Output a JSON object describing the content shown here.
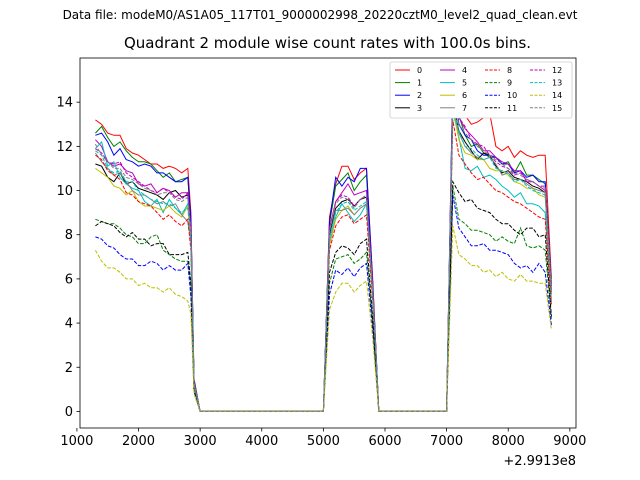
{
  "suptitle": "Data file: modeM0/AS1A05_117T01_9000002998_20220cztM0_level2_quad_clean.evt",
  "chart_data": {
    "type": "line",
    "title": "Quadrant 2 module wise count rates with 100.0s bins.",
    "xlabel": "",
    "ylabel": "",
    "x_offset_text": "+2.9913e8",
    "xlim": [
      1050,
      9100
    ],
    "ylim": [
      -0.75,
      16
    ],
    "xticks": [
      1000,
      2000,
      3000,
      4000,
      5000,
      6000,
      7000,
      8000,
      9000
    ],
    "yticks": [
      0,
      2,
      4,
      6,
      8,
      10,
      12,
      14
    ],
    "legend_position": "top-right",
    "grid": false,
    "x": [
      1300,
      1400,
      1500,
      1600,
      1700,
      1800,
      1900,
      2000,
      2100,
      2200,
      2300,
      2400,
      2500,
      2600,
      2700,
      2800,
      2850,
      2900,
      3000,
      3500,
      4000,
      4500,
      5000,
      5100,
      5200,
      5300,
      5400,
      5500,
      5600,
      5700,
      5800,
      5900,
      6000,
      6500,
      7000,
      7100,
      7200,
      7300,
      7400,
      7500,
      7600,
      7700,
      7800,
      7900,
      8000,
      8100,
      8200,
      8300,
      8400,
      8500,
      8600,
      8700
    ],
    "series": [
      {
        "name": "0",
        "color": "#ff0000",
        "dash": "solid",
        "values": [
          13.2,
          13.0,
          12.6,
          12.5,
          12.5,
          11.9,
          11.7,
          11.6,
          11.4,
          11.2,
          11.2,
          11.0,
          11.1,
          11.0,
          10.8,
          11.0,
          9.0,
          1.5,
          0,
          0,
          0,
          0,
          0,
          8.8,
          10.3,
          11.1,
          11.1,
          10.5,
          10.8,
          11.0,
          6.0,
          0,
          0,
          0,
          0,
          15.0,
          13.8,
          13.4,
          13.0,
          13.1,
          13.3,
          13.5,
          12.0,
          11.8,
          12.0,
          11.5,
          11.8,
          11.6,
          11.5,
          11.6,
          11.6,
          6.0
        ]
      },
      {
        "name": "1",
        "color": "#008000",
        "dash": "solid",
        "values": [
          12.6,
          12.9,
          12.4,
          12.0,
          12.2,
          11.8,
          11.5,
          11.3,
          11.3,
          11.2,
          10.9,
          10.6,
          10.8,
          10.4,
          10.5,
          10.6,
          8.7,
          1.4,
          0,
          0,
          0,
          0,
          0,
          8.5,
          10.2,
          10.5,
          10.8,
          10.0,
          10.4,
          10.7,
          5.8,
          0,
          0,
          0,
          0,
          14.6,
          13.4,
          12.5,
          12.0,
          12.1,
          11.7,
          11.5,
          11.5,
          11.2,
          11.3,
          10.8,
          11.3,
          10.7,
          10.7,
          10.5,
          10.3,
          5.8
        ]
      },
      {
        "name": "2",
        "color": "#0000ff",
        "dash": "solid",
        "values": [
          12.5,
          12.6,
          12.2,
          11.6,
          11.9,
          11.4,
          11.3,
          11.1,
          11.2,
          11.1,
          10.8,
          10.8,
          10.6,
          10.4,
          10.4,
          10.6,
          8.7,
          1.4,
          0,
          0,
          0,
          0,
          0,
          8.6,
          10.6,
          10.2,
          10.6,
          10.4,
          11.0,
          11.0,
          5.8,
          0,
          0,
          0,
          0,
          15.2,
          13.0,
          12.5,
          12.3,
          11.8,
          11.6,
          11.6,
          11.5,
          11.2,
          11.2,
          10.8,
          10.9,
          10.6,
          10.7,
          10.4,
          10.4,
          5.7
        ]
      },
      {
        "name": "3",
        "color": "#000000",
        "dash": "solid",
        "values": [
          11.2,
          11.1,
          10.6,
          10.4,
          10.8,
          10.3,
          10.4,
          10.1,
          10.0,
          9.9,
          9.8,
          9.6,
          9.9,
          10.0,
          9.7,
          9.8,
          8.0,
          1.3,
          0,
          0,
          0,
          0,
          0,
          8.0,
          9.2,
          9.5,
          9.6,
          9.3,
          9.6,
          9.7,
          5.4,
          0,
          0,
          0,
          0,
          14.1,
          12.7,
          12.2,
          11.8,
          11.4,
          11.7,
          11.6,
          11.1,
          10.8,
          10.9,
          10.6,
          10.5,
          10.4,
          10.2,
          10.1,
          9.9,
          5.4
        ]
      },
      {
        "name": "4",
        "color": "#bf00bf",
        "dash": "solid",
        "values": [
          12.3,
          12.0,
          11.3,
          11.1,
          11.2,
          10.9,
          10.8,
          10.3,
          10.2,
          10.3,
          9.9,
          10.1,
          10.0,
          9.7,
          9.9,
          9.9,
          8.3,
          1.3,
          0,
          0,
          0,
          0,
          0,
          8.3,
          9.5,
          9.9,
          10.3,
          9.8,
          9.9,
          10.0,
          5.6,
          0,
          0,
          0,
          0,
          14.6,
          13.3,
          12.8,
          12.5,
          12.2,
          11.8,
          11.8,
          11.5,
          11.3,
          11.2,
          10.9,
          10.9,
          10.4,
          10.4,
          10.2,
          10.0,
          5.5
        ]
      },
      {
        "name": "5",
        "color": "#00bfbf",
        "dash": "solid",
        "values": [
          11.9,
          12.2,
          11.1,
          11.3,
          10.6,
          10.3,
          10.1,
          10.0,
          9.5,
          9.3,
          9.6,
          9.0,
          9.6,
          9.2,
          8.9,
          9.4,
          7.8,
          1.3,
          0,
          0,
          0,
          0,
          0,
          7.6,
          8.8,
          9.4,
          9.0,
          8.6,
          8.9,
          9.4,
          5.2,
          0,
          0,
          0,
          0,
          13.6,
          12.4,
          11.0,
          10.9,
          11.1,
          10.6,
          10.7,
          10.5,
          10.2,
          10.0,
          9.7,
          9.9,
          9.4,
          9.4,
          9.3,
          9.0,
          5.0
        ]
      },
      {
        "name": "6",
        "color": "#bfbf00",
        "dash": "solid",
        "values": [
          11.0,
          10.8,
          10.6,
          10.2,
          10.1,
          9.8,
          10.0,
          9.5,
          9.3,
          9.3,
          9.2,
          9.1,
          9.3,
          9.0,
          8.8,
          9.3,
          7.6,
          1.2,
          0,
          0,
          0,
          0,
          0,
          7.5,
          8.7,
          9.1,
          9.3,
          8.9,
          9.2,
          9.4,
          5.2,
          0,
          0,
          0,
          0,
          13.8,
          12.3,
          11.7,
          11.6,
          11.4,
          11.4,
          11.0,
          10.9,
          10.9,
          10.7,
          10.4,
          10.3,
          10.1,
          10.1,
          9.8,
          9.7,
          5.3
        ]
      },
      {
        "name": "7",
        "color": "#808080",
        "dash": "solid",
        "values": [
          11.7,
          11.3,
          11.0,
          10.7,
          10.8,
          10.4,
          10.0,
          9.8,
          9.8,
          9.6,
          9.4,
          9.5,
          9.3,
          9.4,
          8.9,
          8.6,
          7.7,
          1.2,
          0,
          0,
          0,
          0,
          0,
          7.8,
          9.1,
          9.1,
          9.2,
          8.9,
          9.2,
          9.4,
          5.2,
          0,
          0,
          0,
          0,
          13.8,
          12.6,
          12.0,
          11.7,
          11.5,
          11.4,
          11.5,
          11.2,
          10.7,
          10.8,
          10.5,
          10.5,
          10.3,
          10.1,
          10.0,
          9.9,
          5.4
        ]
      },
      {
        "name": "8",
        "color": "#ff0000",
        "dash": "dashed",
        "values": [
          11.6,
          11.4,
          10.9,
          10.7,
          10.5,
          9.9,
          9.8,
          9.5,
          9.4,
          9.3,
          9.0,
          8.7,
          8.9,
          8.6,
          8.4,
          8.7,
          7.3,
          1.2,
          0,
          0,
          0,
          0,
          0,
          7.3,
          8.4,
          8.8,
          8.9,
          8.5,
          8.7,
          8.9,
          5.0,
          0,
          0,
          0,
          0,
          13.2,
          11.6,
          11.2,
          10.8,
          10.5,
          10.6,
          10.3,
          10.0,
          9.9,
          9.7,
          9.5,
          9.4,
          9.2,
          9.0,
          8.8,
          8.7,
          4.8
        ]
      },
      {
        "name": "9",
        "color": "#008000",
        "dash": "dashed",
        "values": [
          8.7,
          8.6,
          8.5,
          8.5,
          8.3,
          8.0,
          7.9,
          7.6,
          7.6,
          7.9,
          8.0,
          7.3,
          7.1,
          6.9,
          6.8,
          6.8,
          5.7,
          1.0,
          0,
          0,
          0,
          0,
          0,
          5.8,
          6.9,
          7.0,
          7.1,
          6.7,
          6.9,
          7.2,
          4.0,
          0,
          0,
          0,
          0,
          10.2,
          8.7,
          8.5,
          8.2,
          8.2,
          8.1,
          8.0,
          7.7,
          7.9,
          7.7,
          7.6,
          8.3,
          7.5,
          7.4,
          7.5,
          7.3,
          4.2
        ]
      },
      {
        "name": "10",
        "color": "#0000ff",
        "dash": "dashed",
        "values": [
          7.9,
          7.8,
          7.5,
          7.4,
          7.1,
          6.9,
          6.9,
          6.6,
          6.6,
          6.8,
          6.7,
          6.4,
          6.6,
          6.4,
          6.4,
          6.7,
          5.2,
          0.9,
          0,
          0,
          0,
          0,
          0,
          5.3,
          6.4,
          6.2,
          6.5,
          6.1,
          6.5,
          6.7,
          3.7,
          0,
          0,
          0,
          0,
          9.8,
          8.3,
          7.9,
          7.5,
          7.5,
          7.6,
          7.3,
          7.3,
          7.2,
          7.1,
          6.7,
          6.5,
          6.6,
          6.3,
          6.7,
          6.3,
          3.9
        ]
      },
      {
        "name": "11",
        "color": "#000000",
        "dash": "dashed",
        "values": [
          8.4,
          8.6,
          8.5,
          8.4,
          8.1,
          7.9,
          8.1,
          7.8,
          7.8,
          7.5,
          7.6,
          7.6,
          7.1,
          7.1,
          7.1,
          7.2,
          5.8,
          1.0,
          0,
          0,
          0,
          0,
          0,
          6.3,
          7.2,
          7.5,
          7.4,
          7.1,
          7.6,
          7.8,
          4.2,
          0,
          0,
          0,
          0,
          10.4,
          9.9,
          9.5,
          9.6,
          9.2,
          9.1,
          9.0,
          8.7,
          8.5,
          8.5,
          8.2,
          8.0,
          8.3,
          8.3,
          7.9,
          8.0,
          4.3
        ]
      },
      {
        "name": "12",
        "color": "#bf00bf",
        "dash": "dashed",
        "values": [
          11.9,
          11.7,
          11.3,
          11.2,
          11.3,
          10.8,
          10.6,
          10.4,
          10.2,
          10.0,
          9.9,
          10.1,
          9.9,
          9.7,
          9.6,
          9.9,
          8.2,
          1.3,
          0,
          0,
          0,
          0,
          0,
          8.2,
          9.5,
          9.8,
          9.7,
          9.3,
          9.6,
          9.8,
          5.5,
          0,
          0,
          0,
          0,
          14.4,
          13.3,
          12.9,
          12.3,
          12.1,
          12.0,
          11.6,
          11.3,
          11.1,
          11.0,
          10.7,
          10.8,
          10.5,
          10.4,
          10.2,
          10.2,
          5.5
        ]
      },
      {
        "name": "13",
        "color": "#00bfbf",
        "dash": "dashed",
        "values": [
          11.8,
          11.6,
          11.0,
          10.8,
          10.9,
          10.4,
          10.4,
          10.0,
          9.8,
          9.6,
          9.5,
          9.4,
          9.4,
          9.2,
          9.0,
          9.2,
          7.7,
          1.2,
          0,
          0,
          0,
          0,
          0,
          7.9,
          9.0,
          9.4,
          9.5,
          9.1,
          9.3,
          9.5,
          5.3,
          0,
          0,
          0,
          0,
          14.0,
          12.7,
          12.0,
          11.9,
          11.6,
          11.4,
          11.5,
          11.0,
          10.9,
          10.8,
          10.4,
          10.5,
          10.2,
          10.0,
          9.9,
          9.8,
          5.3
        ]
      },
      {
        "name": "14",
        "color": "#bfbf00",
        "dash": "dashed",
        "values": [
          7.3,
          6.8,
          6.5,
          6.5,
          6.3,
          6.0,
          6.0,
          5.7,
          5.8,
          5.6,
          5.6,
          5.4,
          5.6,
          5.3,
          5.2,
          5.0,
          4.4,
          0.8,
          0,
          0,
          0,
          0,
          0,
          4.6,
          5.4,
          5.8,
          5.8,
          5.4,
          5.7,
          5.9,
          3.3,
          0,
          0,
          0,
          0,
          8.4,
          7.1,
          6.9,
          6.6,
          6.6,
          6.3,
          6.4,
          6.1,
          6.3,
          6.0,
          5.9,
          6.2,
          5.9,
          5.9,
          5.8,
          5.8,
          3.7
        ]
      },
      {
        "name": "15",
        "color": "#808080",
        "dash": "dashed",
        "values": [
          12.1,
          11.6,
          11.3,
          11.0,
          11.0,
          10.6,
          10.5,
          10.3,
          10.1,
          10.0,
          9.8,
          9.9,
          9.9,
          9.6,
          9.5,
          9.7,
          8.1,
          1.3,
          0,
          0,
          0,
          0,
          0,
          8.2,
          9.4,
          9.7,
          9.6,
          9.2,
          9.6,
          9.8,
          5.5,
          0,
          0,
          0,
          0,
          14.4,
          13.0,
          12.6,
          12.3,
          12.0,
          11.8,
          11.6,
          11.4,
          11.2,
          11.0,
          10.8,
          10.7,
          10.5,
          10.4,
          10.2,
          10.1,
          5.5
        ]
      }
    ]
  }
}
